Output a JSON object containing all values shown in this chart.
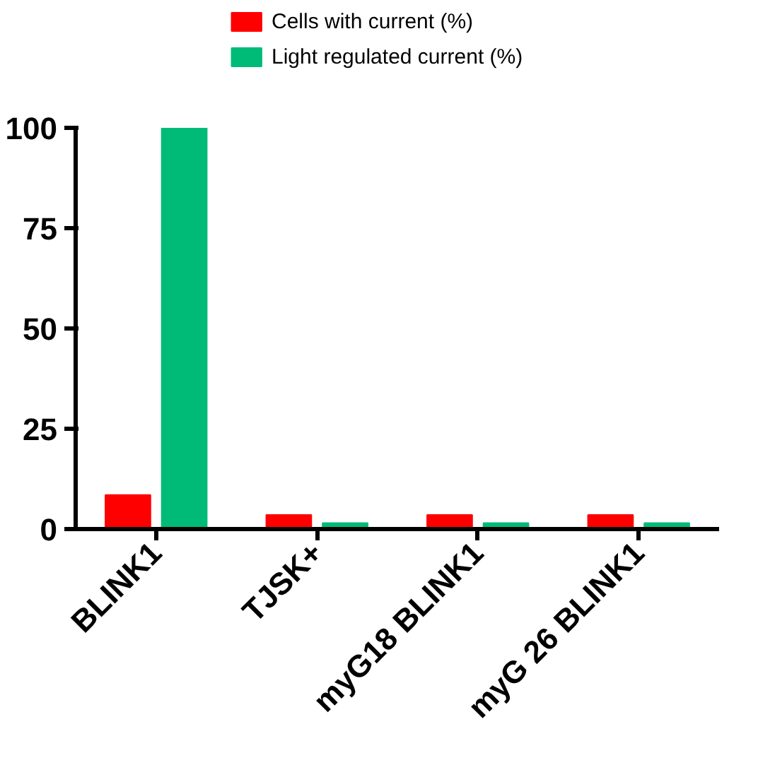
{
  "chart_data": {
    "type": "bar",
    "categories": [
      "BLINK1",
      "TJSK+",
      "myG18 BLINK1",
      "myG 26 BLINK1"
    ],
    "series": [
      {
        "name": "Cells with current (%)",
        "color": "#ff0000",
        "values": [
          8.5,
          3.5,
          3.5,
          3.5
        ]
      },
      {
        "name": "Light regulated current (%)",
        "color": "#00bb77",
        "values": [
          100,
          1.5,
          1.5,
          1.5
        ]
      }
    ],
    "ylim": [
      0,
      100
    ],
    "yticks": [
      0,
      25,
      50,
      75,
      100
    ],
    "grid": false,
    "legend": "top"
  }
}
